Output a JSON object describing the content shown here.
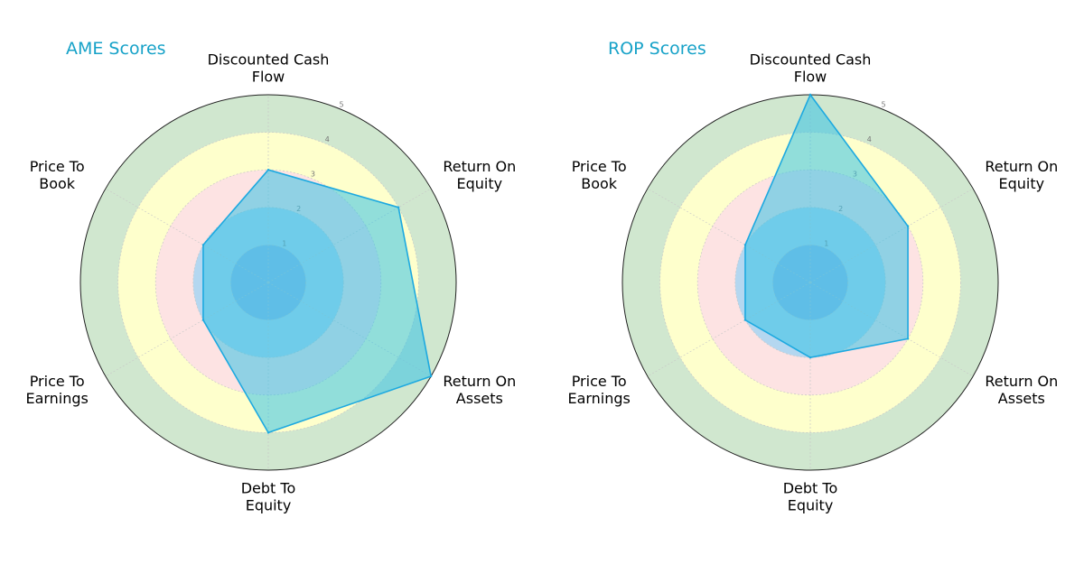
{
  "chart_data": [
    {
      "type": "radar",
      "title": "AME Scores",
      "axes": [
        "Discounted Cash Flow",
        "Return On Equity",
        "Return On Assets",
        "Debt To Equity",
        "Price To Earnings",
        "Price To Book"
      ],
      "axis_label_lines": [
        [
          "Discounted Cash",
          "Flow"
        ],
        [
          "Return On",
          "Equity"
        ],
        [
          "Return On",
          "Assets"
        ],
        [
          "Debt To",
          "Equity"
        ],
        [
          "Price To",
          "Earnings"
        ],
        [
          "Price To",
          "Book"
        ]
      ],
      "values": [
        3,
        4,
        5,
        4,
        2,
        2
      ],
      "rlim": [
        0,
        5
      ],
      "rticks": [
        "1",
        "2",
        "3",
        "4",
        "5"
      ],
      "grid": true
    },
    {
      "type": "radar",
      "title": "ROP Scores",
      "axes": [
        "Discounted Cash Flow",
        "Return On Equity",
        "Return On Assets",
        "Debt To Equity",
        "Price To Earnings",
        "Price To Book"
      ],
      "axis_label_lines": [
        [
          "Discounted Cash",
          "Flow"
        ],
        [
          "Return On",
          "Equity"
        ],
        [
          "Return On",
          "Assets"
        ],
        [
          "Debt To",
          "Equity"
        ],
        [
          "Price To",
          "Earnings"
        ],
        [
          "Price To",
          "Book"
        ]
      ],
      "values": [
        5,
        3,
        3,
        2,
        2,
        2
      ],
      "rlim": [
        0,
        5
      ],
      "rticks": [
        "1",
        "2",
        "3",
        "4",
        "5"
      ],
      "grid": true
    }
  ],
  "style": {
    "series_fill": "#36c3e6",
    "series_stroke": "#1da9e0",
    "title_color": "#17a2c8",
    "band_colors": [
      "#8ab4e8",
      "#b4d7f0",
      "#fde3e3",
      "#feffcc",
      "#d0e7cf"
    ]
  }
}
